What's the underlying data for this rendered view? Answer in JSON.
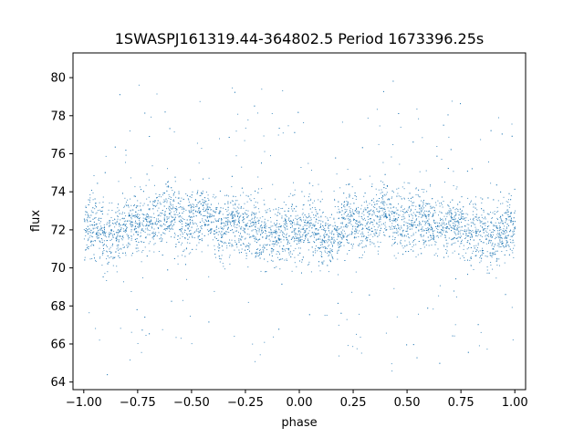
{
  "chart_data": {
    "type": "scatter",
    "title": "1SWASPJ161319.44-364802.5 Period 1673396.25s",
    "xlabel": "phase",
    "ylabel": "flux",
    "xlim": [
      -1.05,
      1.05
    ],
    "ylim": [
      63.6,
      81.3
    ],
    "xticks": [
      -1.0,
      -0.75,
      -0.5,
      -0.25,
      0.0,
      0.25,
      0.5,
      0.75,
      1.0
    ],
    "xtick_labels": [
      "−1.00",
      "−0.75",
      "−0.50",
      "−0.25",
      "0.00",
      "0.25",
      "0.50",
      "0.75",
      "1.00"
    ],
    "yticks": [
      64,
      66,
      68,
      70,
      72,
      74,
      76,
      78,
      80
    ],
    "ytick_labels": [
      "64",
      "66",
      "68",
      "70",
      "72",
      "74",
      "76",
      "78",
      "80"
    ],
    "grid": false,
    "marker_color": "#1f77b4",
    "series": [
      {
        "x_range": [
          -1.0,
          1.0
        ],
        "periodic_in_x": 1.0,
        "profile_phase": [
          0.0,
          0.05,
          0.1,
          0.15,
          0.2,
          0.25,
          0.3,
          0.35,
          0.4,
          0.45,
          0.5,
          0.55,
          0.6,
          0.65,
          0.7,
          0.75,
          0.8,
          0.85,
          0.9,
          0.95,
          1.0
        ],
        "profile_median_flux": [
          72.0,
          72.3,
          71.4,
          71.5,
          72.3,
          72.5,
          72.4,
          72.6,
          73.0,
          72.4,
          72.5,
          72.8,
          72.4,
          72.0,
          72.4,
          72.1,
          72.2,
          71.6,
          71.6,
          72.1,
          72.0
        ]
      }
    ]
  }
}
